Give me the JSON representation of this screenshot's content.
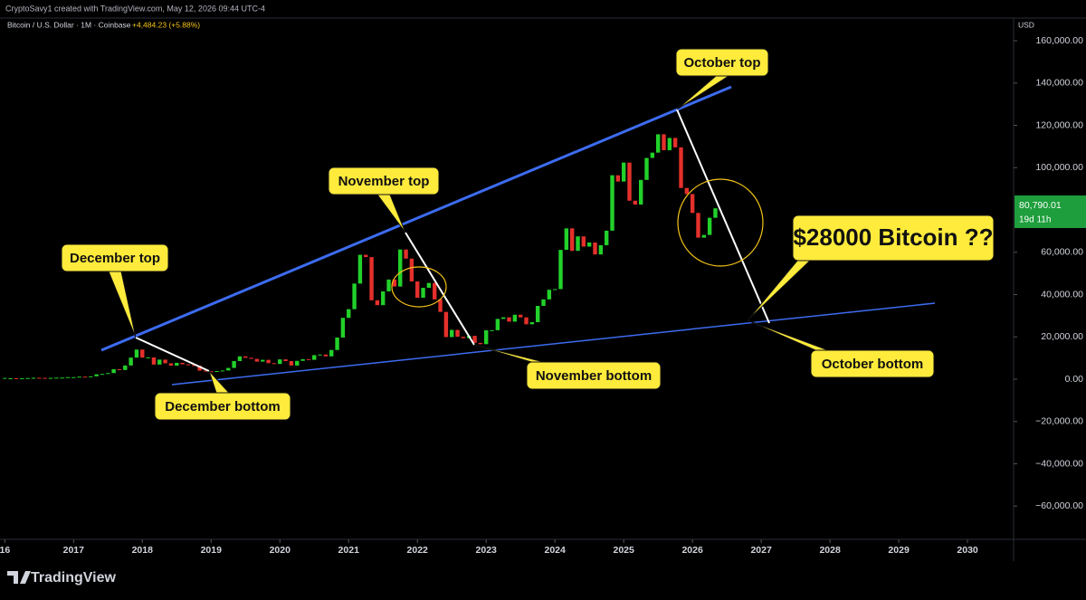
{
  "header": {
    "text": "CryptoSavy1 created with TradingView.com, May 12, 2026 09:44 UTC-4"
  },
  "footer": {
    "brand": "TradingView"
  },
  "chart_data": {
    "type": "candlestick",
    "title": "Bitcoin / U.S. Dollar · 1M · Coinbase",
    "subtitle": "+4,484.23 (+5.88%)",
    "currency": "USD",
    "last_price_label": "80,790.01",
    "countdown": "19d 11h",
    "up_color": "#22d12a",
    "down_color": "#e5302b",
    "grid": false,
    "x": [
      "2016-01",
      "2016-02",
      "2016-03",
      "2016-04",
      "2016-05",
      "2016-06",
      "2016-07",
      "2016-08",
      "2016-09",
      "2016-10",
      "2016-11",
      "2016-12",
      "2017-01",
      "2017-02",
      "2017-03",
      "2017-04",
      "2017-05",
      "2017-06",
      "2017-07",
      "2017-08",
      "2017-09",
      "2017-10",
      "2017-11",
      "2017-12",
      "2018-01",
      "2018-02",
      "2018-03",
      "2018-04",
      "2018-05",
      "2018-06",
      "2018-07",
      "2018-08",
      "2018-09",
      "2018-10",
      "2018-11",
      "2018-12",
      "2019-01",
      "2019-02",
      "2019-03",
      "2019-04",
      "2019-05",
      "2019-06",
      "2019-07",
      "2019-08",
      "2019-09",
      "2019-10",
      "2019-11",
      "2019-12",
      "2020-01",
      "2020-02",
      "2020-03",
      "2020-04",
      "2020-05",
      "2020-06",
      "2020-07",
      "2020-08",
      "2020-09",
      "2020-10",
      "2020-11",
      "2020-12",
      "2021-01",
      "2021-02",
      "2021-03",
      "2021-04",
      "2021-05",
      "2021-06",
      "2021-07",
      "2021-08",
      "2021-09",
      "2021-10",
      "2021-11",
      "2021-12",
      "2022-01",
      "2022-02",
      "2022-03",
      "2022-04",
      "2022-05",
      "2022-06",
      "2022-07",
      "2022-08",
      "2022-09",
      "2022-10",
      "2022-11",
      "2022-12",
      "2023-01",
      "2023-02",
      "2023-03",
      "2023-04",
      "2023-05",
      "2023-06",
      "2023-07",
      "2023-08",
      "2023-09",
      "2023-10",
      "2023-11",
      "2023-12",
      "2024-01",
      "2024-02",
      "2024-03",
      "2024-04",
      "2024-05",
      "2024-06",
      "2024-07",
      "2024-08",
      "2024-09",
      "2024-10",
      "2024-11",
      "2024-12",
      "2025-01",
      "2025-02",
      "2025-03",
      "2025-04",
      "2025-05",
      "2025-06",
      "2025-07",
      "2025-08",
      "2025-09",
      "2025-10",
      "2025-11",
      "2025-12",
      "2026-01",
      "2026-02",
      "2026-03",
      "2026-04",
      "2026-05"
    ],
    "values": [
      368,
      437,
      416,
      448,
      531,
      673,
      624,
      575,
      609,
      698,
      742,
      964,
      970,
      1190,
      1080,
      1350,
      2300,
      2480,
      2880,
      4700,
      4340,
      6470,
      10200,
      14000,
      10200,
      10300,
      6900,
      9250,
      7500,
      6400,
      7730,
      7030,
      6630,
      6370,
      4040,
      3740,
      3460,
      3850,
      4100,
      5320,
      8570,
      10800,
      10100,
      9600,
      8300,
      9150,
      7570,
      7200,
      9350,
      8550,
      6440,
      8660,
      9460,
      9140,
      11350,
      11650,
      10780,
      13800,
      19700,
      28990,
      33100,
      45200,
      58800,
      57700,
      37300,
      35000,
      41500,
      47100,
      43800,
      61300,
      57000,
      46200,
      38500,
      43200,
      45500,
      37700,
      31800,
      19900,
      23300,
      20050,
      19400,
      20500,
      17150,
      16550,
      23100,
      23150,
      28500,
      29250,
      27200,
      30470,
      29230,
      25940,
      26960,
      34650,
      37720,
      42280,
      42580,
      61130,
      71300,
      60660,
      67500,
      62680,
      64620,
      58970,
      63330,
      70210,
      96400,
      93430,
      102400,
      84370,
      82550,
      94200,
      104600,
      107100,
      115760,
      108250,
      114050,
      109600,
      90400,
      87500,
      78600,
      66900,
      68200,
      76300,
      80790.01
    ],
    "xlim": [
      2015.93,
      2030.67
    ],
    "xticks": [
      {
        "value": 2016,
        "label": "16"
      },
      2017,
      2018,
      2019,
      2020,
      2021,
      2022,
      2023,
      2024,
      2025,
      2026,
      2027,
      2028,
      2029,
      2030
    ],
    "ylim": [
      -75300,
      163000
    ],
    "yticks": [
      {
        "value": 160000,
        "label": "160,000.00"
      },
      {
        "value": 140000,
        "label": "140,000.00"
      },
      {
        "value": 120000,
        "label": "120,000.00"
      },
      {
        "value": 100000,
        "label": "100,000.00"
      },
      {
        "value": 60000,
        "label": "60,000.00"
      },
      {
        "value": 40000,
        "label": "40,000.00"
      },
      {
        "value": 20000,
        "label": "20,000.00"
      },
      {
        "value": 0,
        "label": "0.00"
      },
      {
        "value": -20000,
        "label": "−20,000.00"
      },
      {
        "value": -40000,
        "label": "−40,000.00"
      },
      {
        "value": -60000,
        "label": "−60,000.00"
      }
    ],
    "annotations": [
      "October top",
      "November top",
      "December top",
      "$28000 Bitcoin ??",
      "December bottom",
      "November bottom",
      "October bottom"
    ]
  }
}
